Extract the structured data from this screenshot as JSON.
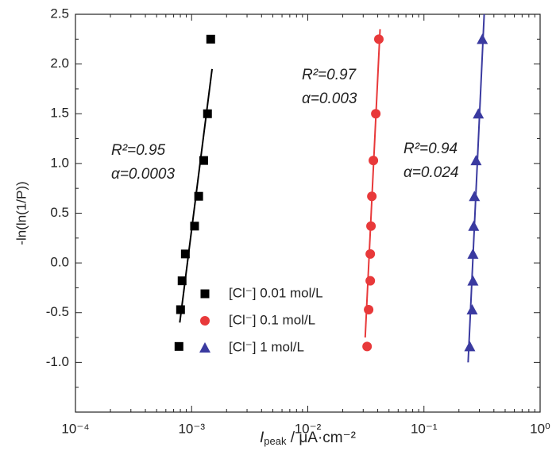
{
  "chart_data": {
    "type": "scatter",
    "xlabel": {
      "main": "I",
      "sub": "peak",
      "rest": " / μA·cm⁻²"
    },
    "ylabel": "-ln(ln(1/P))",
    "xscale": "log",
    "xlim": [
      0.0001,
      1
    ],
    "xticks": [
      {
        "value": 0.0001,
        "label": "10⁻⁴"
      },
      {
        "value": 0.001,
        "label": "10⁻³"
      },
      {
        "value": 0.01,
        "label": "10⁻²"
      },
      {
        "value": 0.1,
        "label": "10⁻¹"
      },
      {
        "value": 1,
        "label": "10⁰"
      }
    ],
    "ylim": [
      -1.5,
      2.5
    ],
    "yticks": [
      {
        "value": -1,
        "label": "-1.0"
      },
      -0.5,
      {
        "value": 0,
        "label": "0.0"
      },
      0.5,
      {
        "value": 1,
        "label": "1.0"
      },
      1.5,
      {
        "value": 2,
        "label": "2.0"
      },
      2.5
    ],
    "legend": "bottom-left",
    "series": [
      {
        "name": "[Cl⁻] 0.01 mol/L",
        "color": "#000000",
        "marker": "square",
        "x": [
          0.00146,
          0.00137,
          0.00127,
          0.00115,
          0.00106,
          0.000883,
          0.000828,
          0.000803,
          0.000778
        ],
        "values": [
          2.25,
          1.5,
          1.03,
          0.67,
          0.37,
          0.09,
          -0.18,
          -0.47,
          -0.84
        ],
        "fit": {
          "x": [
            0.000791,
            0.0015
          ],
          "values": [
            -0.6,
            1.95
          ]
        }
      },
      {
        "name": "[Cl⁻] 0.1 mol/L",
        "color": "#e8393a",
        "marker": "circle",
        "x": [
          0.0409,
          0.0385,
          0.0367,
          0.0356,
          0.035,
          0.0345,
          0.0345,
          0.0334,
          0.0324
        ],
        "values": [
          2.25,
          1.5,
          1.03,
          0.67,
          0.37,
          0.09,
          -0.18,
          -0.47,
          -0.84
        ],
        "fit": {
          "x": [
            0.0312,
            0.0419
          ],
          "values": [
            -0.75,
            2.35
          ]
        }
      },
      {
        "name": "[Cl⁻] 1 mol/L",
        "color": "#3a3aa0",
        "marker": "triangle",
        "x": [
          0.318,
          0.294,
          0.281,
          0.272,
          0.268,
          0.264,
          0.264,
          0.26,
          0.248
        ],
        "values": [
          2.25,
          1.5,
          1.03,
          0.67,
          0.37,
          0.09,
          -0.18,
          -0.47,
          -0.84
        ],
        "fit": {
          "x": [
            0.24,
            0.33
          ],
          "values": [
            -1.0,
            2.5
          ]
        }
      }
    ],
    "annotations": [
      {
        "lines": [
          "R²=0.95",
          "α=0.0003"
        ]
      },
      {
        "lines": [
          "R²=0.97",
          "α=0.003"
        ]
      },
      {
        "lines": [
          "R²=0.94",
          "α=0.024"
        ]
      }
    ]
  }
}
